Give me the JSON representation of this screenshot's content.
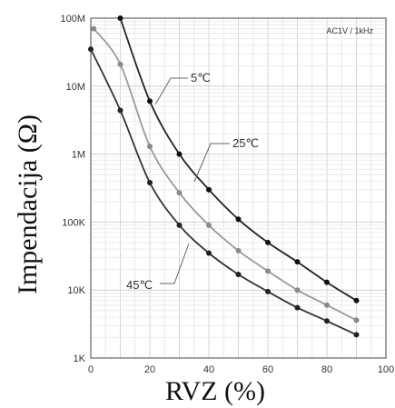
{
  "chart_data": {
    "type": "line",
    "title": "",
    "xlabel": "RVZ (%)",
    "ylabel": "Impendacija (Ω)",
    "condition_label": "AC1V / 1kHz",
    "x_scale": "linear",
    "y_scale": "log",
    "xlim": [
      0,
      100
    ],
    "ylim": [
      1000,
      100000000
    ],
    "x_ticks": [
      0,
      20,
      40,
      60,
      80,
      100
    ],
    "x_tick_labels": [
      "0",
      "20",
      "40",
      "60",
      "80",
      "100"
    ],
    "y_ticks": [
      1000,
      10000,
      100000,
      1000000,
      10000000,
      100000000
    ],
    "y_tick_labels": [
      "1K",
      "10K",
      "100K",
      "1M",
      "10M",
      "100M"
    ],
    "grid": true,
    "legend": "none",
    "series": [
      {
        "name": "5℃",
        "color": "#222222",
        "marker_color": "#111111",
        "points": [
          [
            10,
            100000000
          ],
          [
            20,
            6000000
          ],
          [
            30,
            1000000
          ],
          [
            40,
            300000
          ],
          [
            50,
            110000
          ],
          [
            60,
            50000
          ],
          [
            70,
            26000
          ],
          [
            80,
            13000
          ],
          [
            90,
            7000
          ]
        ]
      },
      {
        "name": "25℃",
        "color": "#9a9a9a",
        "marker_color": "#8a8a8a",
        "points": [
          [
            1,
            70000000
          ],
          [
            10,
            21000000
          ],
          [
            20,
            1300000
          ],
          [
            30,
            270000
          ],
          [
            40,
            90000
          ],
          [
            50,
            38000
          ],
          [
            60,
            19000
          ],
          [
            70,
            10000
          ],
          [
            80,
            6000
          ],
          [
            90,
            3600
          ]
        ]
      },
      {
        "name": "45℃",
        "color": "#333333",
        "marker_color": "#222222",
        "points": [
          [
            0,
            35000000
          ],
          [
            10,
            4400000
          ],
          [
            20,
            380000
          ],
          [
            30,
            90000
          ],
          [
            40,
            35000
          ],
          [
            50,
            17000
          ],
          [
            60,
            9500
          ],
          [
            70,
            5500
          ],
          [
            80,
            3500
          ],
          [
            90,
            2200
          ]
        ]
      }
    ],
    "annotations": [
      {
        "text": "5℃",
        "series": "5℃"
      },
      {
        "text": "25℃",
        "series": "25℃"
      },
      {
        "text": "45℃",
        "series": "45℃"
      }
    ]
  }
}
